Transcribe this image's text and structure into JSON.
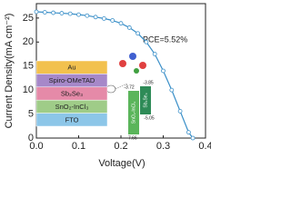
{
  "chart_data": {
    "type": "line",
    "xlabel": "Voltage(V)",
    "ylabel": "Current Density(mA cm⁻²)",
    "annotation": "PCE=5.52%",
    "x": [
      0,
      0.02,
      0.04,
      0.06,
      0.08,
      0.1,
      0.12,
      0.14,
      0.16,
      0.18,
      0.2,
      0.22,
      0.24,
      0.26,
      0.28,
      0.3,
      0.32,
      0.34,
      0.36,
      0.37
    ],
    "series": [
      {
        "color": "#3a8fc8",
        "values": [
          26.3,
          26.2,
          26.1,
          26.0,
          25.9,
          25.7,
          25.5,
          25.2,
          24.9,
          24.5,
          23.9,
          23.0,
          21.8,
          20.0,
          17.5,
          14.0,
          10.0,
          5.6,
          1.2,
          0
        ]
      }
    ],
    "xlim": [
      0,
      0.4
    ],
    "xticks": [
      {
        "value": 0,
        "label": "0.0"
      },
      0.1,
      0.2,
      0.3,
      0.4
    ],
    "ylim": [
      0,
      28
    ],
    "yticks": [
      0,
      5,
      10,
      15,
      20,
      25
    ],
    "inset": {
      "layers": [
        {
          "label": "Au",
          "color": "#f2c14e"
        },
        {
          "label": "Spiro-OMeTAD",
          "color": "#a688c9"
        },
        {
          "label": "Sb₂Se₃",
          "color": "#e58aa8"
        },
        {
          "label": "SnO₂-InCl₃",
          "color": "#9fcc88"
        },
        {
          "label": "FTO",
          "color": "#8cc6e8"
        }
      ],
      "bands": [
        {
          "label": "SnO₂-InCl₃",
          "top": "-3.72",
          "bottom": "-7.66",
          "color": "#5bb55b"
        },
        {
          "label": "Sb₂Se₃",
          "top": "-3.85",
          "bottom": "-5.05",
          "color": "#2e8b57"
        }
      ]
    }
  }
}
